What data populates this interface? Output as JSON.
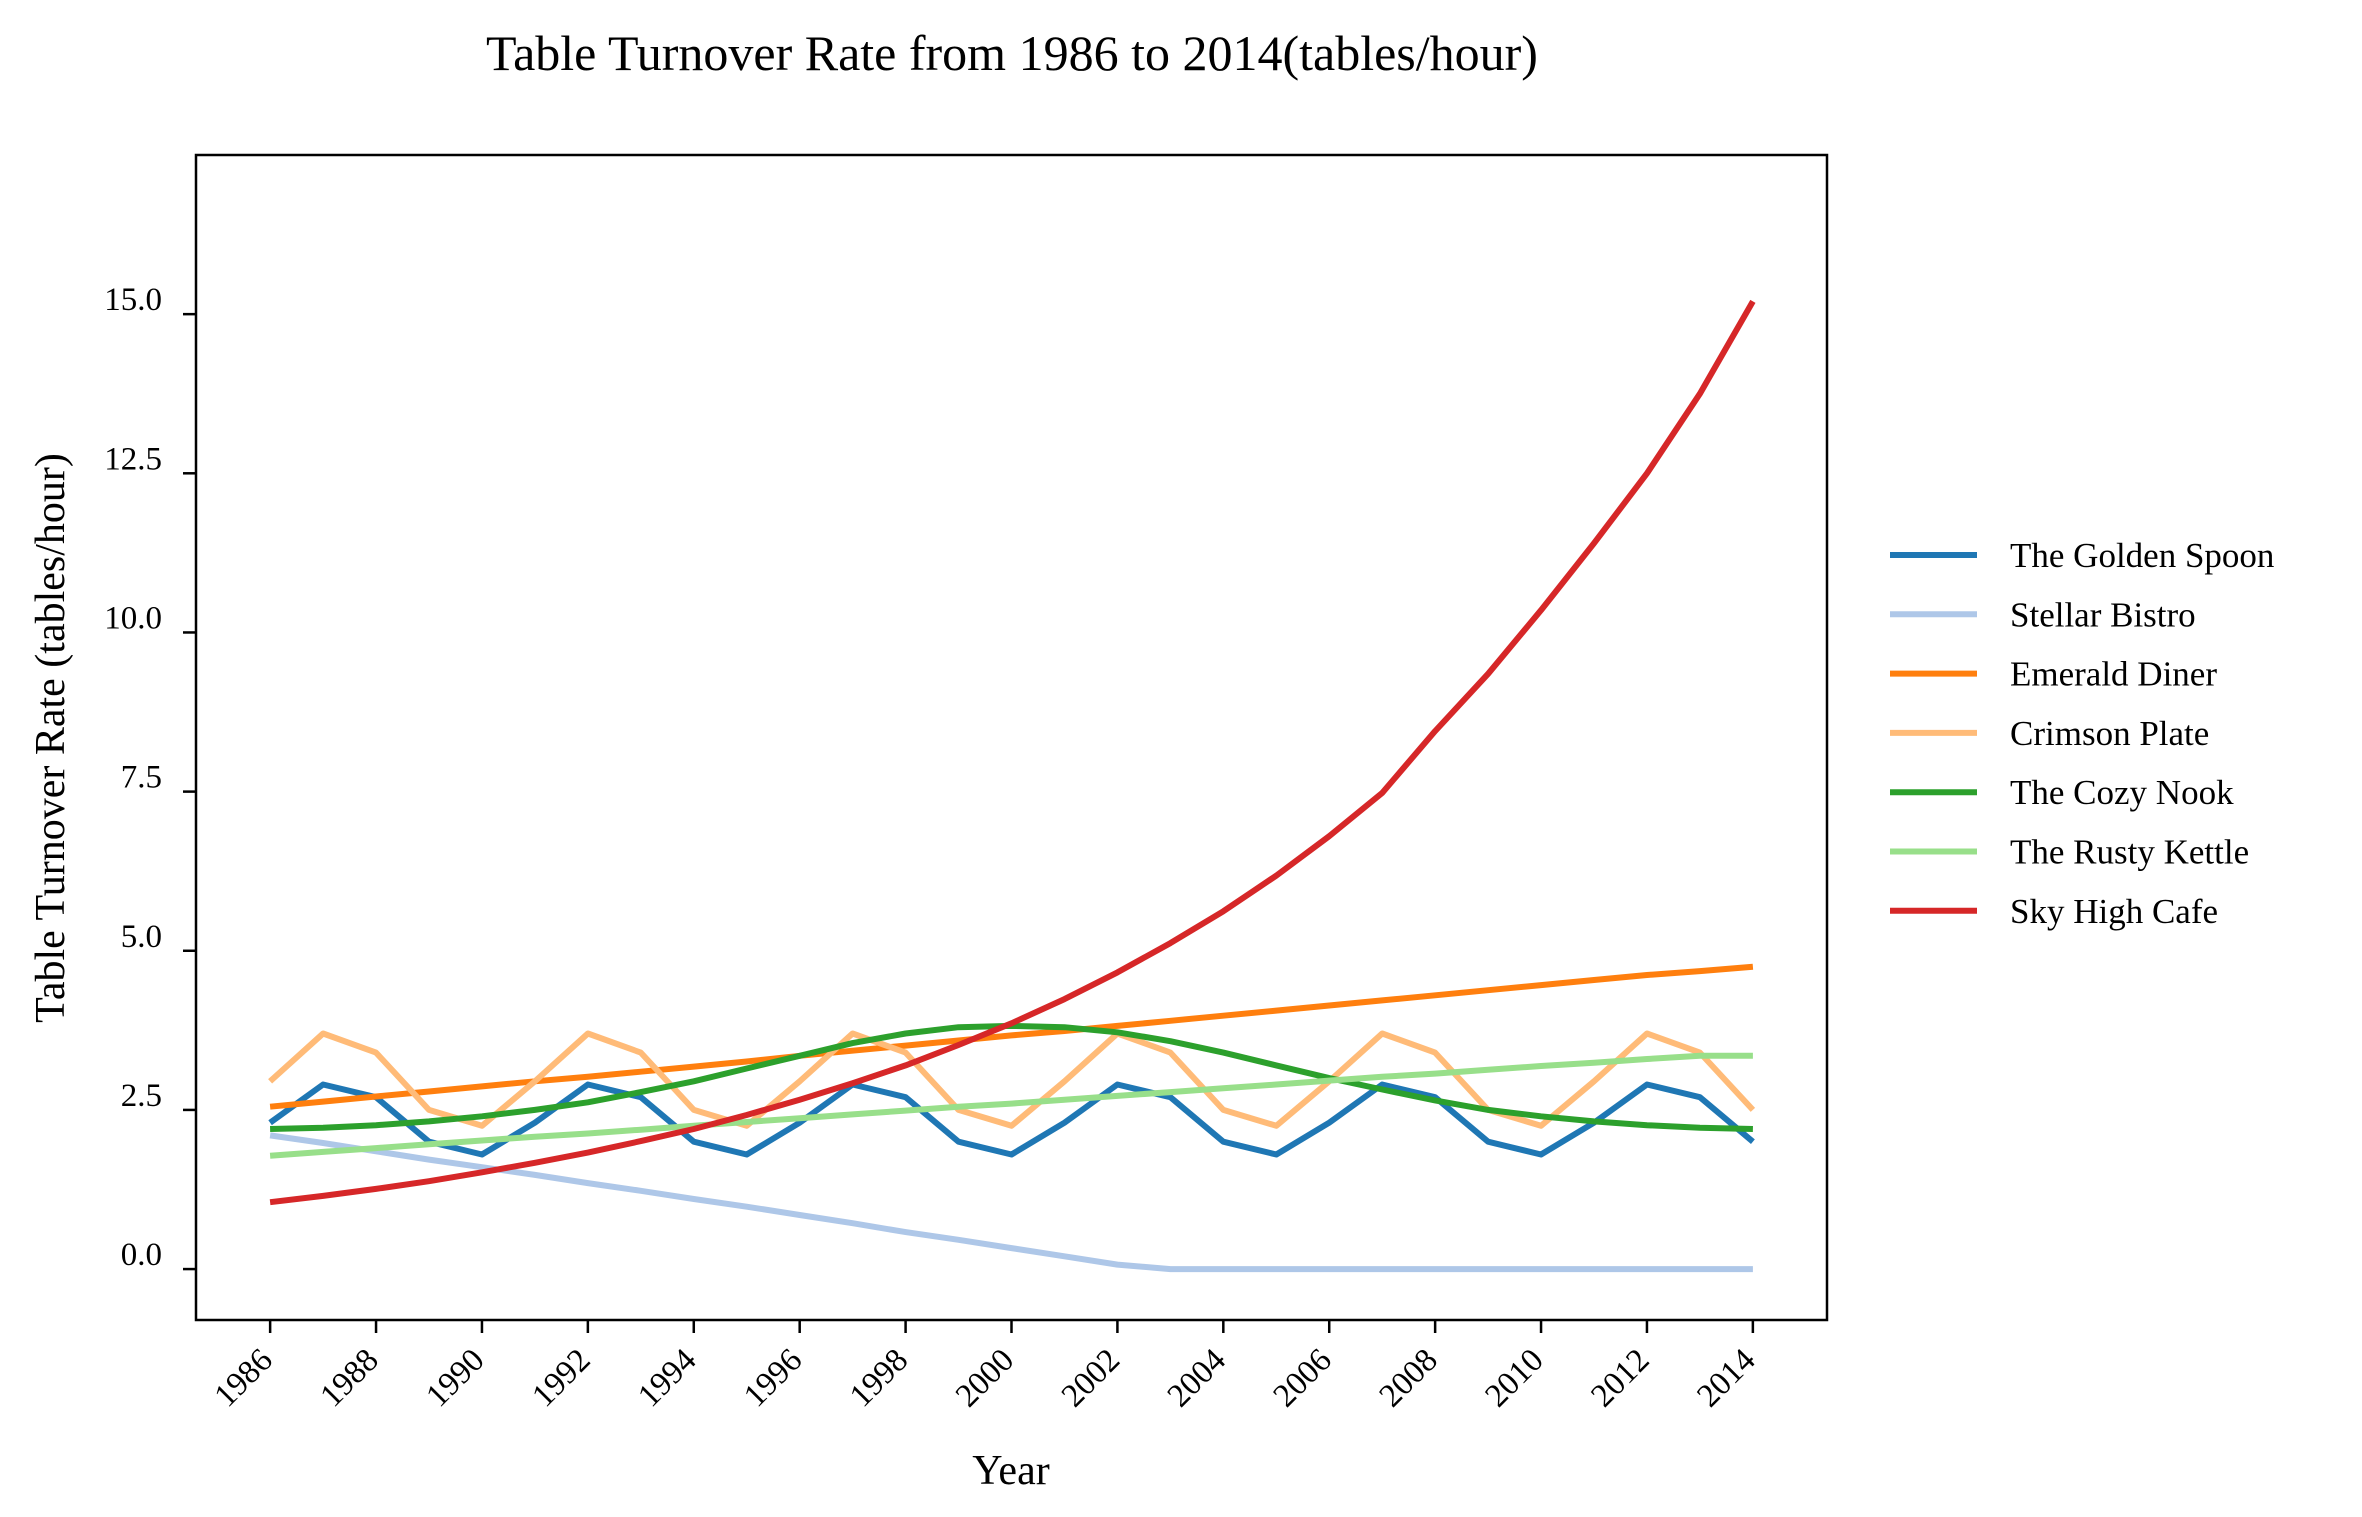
{
  "chart_data": {
    "type": "line",
    "title": "Table Turnover Rate from 1986 to 2014(tables/hour)",
    "xlabel": "Year",
    "ylabel": "Table Turnover Rate (tables/hour)",
    "x": [
      1986,
      1987,
      1988,
      1989,
      1990,
      1991,
      1992,
      1993,
      1994,
      1995,
      1996,
      1997,
      1998,
      1999,
      2000,
      2001,
      2002,
      2003,
      2004,
      2005,
      2006,
      2007,
      2008,
      2009,
      2010,
      2011,
      2012,
      2013,
      2014
    ],
    "xticks": [
      "1986",
      "1988",
      "1990",
      "1992",
      "1994",
      "1996",
      "1998",
      "2000",
      "2002",
      "2004",
      "2006",
      "2008",
      "2010",
      "2012",
      "2014"
    ],
    "yticks": [
      "0.0",
      "2.5",
      "5.0",
      "7.5",
      "10.0",
      "12.5",
      "15.0"
    ],
    "xlim": [
      1984.6,
      2015.4
    ],
    "ylim": [
      -0.8,
      17.5
    ],
    "grid": false,
    "legend_position": "right",
    "series": [
      {
        "name": "The Golden Spoon",
        "color": "#1f77b4",
        "values": [
          2.3,
          2.9,
          2.7,
          2.0,
          1.8,
          2.3,
          2.9,
          2.7,
          2.0,
          1.8,
          2.3,
          2.9,
          2.7,
          2.0,
          1.8,
          2.3,
          2.9,
          2.7,
          2.0,
          1.8,
          2.3,
          2.9,
          2.7,
          2.0,
          1.8,
          2.3,
          2.9,
          2.7,
          2.0
        ]
      },
      {
        "name": "Stellar Bistro",
        "color": "#aec7e8",
        "values": [
          2.1,
          1.98,
          1.85,
          1.72,
          1.6,
          1.48,
          1.35,
          1.23,
          1.1,
          0.98,
          0.85,
          0.72,
          0.58,
          0.46,
          0.33,
          0.2,
          0.07,
          0.0,
          0.0,
          0.0,
          0.0,
          0.0,
          0.0,
          0.0,
          0.0,
          0.0,
          0.0,
          0.0,
          0.0
        ]
      },
      {
        "name": "Emerald Diner",
        "color": "#ff7f0e",
        "values": [
          2.55,
          2.63,
          2.71,
          2.79,
          2.87,
          2.95,
          3.02,
          3.1,
          3.18,
          3.26,
          3.35,
          3.43,
          3.51,
          3.59,
          3.67,
          3.74,
          3.82,
          3.9,
          3.98,
          4.06,
          4.14,
          4.22,
          4.3,
          4.38,
          4.46,
          4.54,
          4.62,
          4.68,
          4.75
        ]
      },
      {
        "name": "Crimson Plate",
        "color": "#ffbb78",
        "values": [
          2.95,
          3.7,
          3.4,
          2.5,
          2.25,
          2.95,
          3.7,
          3.4,
          2.5,
          2.25,
          2.95,
          3.7,
          3.4,
          2.5,
          2.25,
          2.95,
          3.7,
          3.4,
          2.5,
          2.25,
          2.95,
          3.7,
          3.4,
          2.5,
          2.25,
          2.95,
          3.7,
          3.4,
          2.5
        ]
      },
      {
        "name": "The Cozy Nook",
        "color": "#2ca02c",
        "values": [
          2.2,
          2.22,
          2.26,
          2.32,
          2.4,
          2.5,
          2.62,
          2.78,
          2.95,
          3.15,
          3.35,
          3.55,
          3.7,
          3.8,
          3.82,
          3.8,
          3.72,
          3.58,
          3.4,
          3.2,
          3.0,
          2.82,
          2.65,
          2.5,
          2.4,
          2.32,
          2.26,
          2.22,
          2.2
        ]
      },
      {
        "name": "The Rusty Kettle",
        "color": "#98df8a",
        "values": [
          1.78,
          1.84,
          1.9,
          1.96,
          2.02,
          2.08,
          2.13,
          2.19,
          2.25,
          2.31,
          2.37,
          2.43,
          2.49,
          2.55,
          2.6,
          2.66,
          2.72,
          2.78,
          2.84,
          2.9,
          2.96,
          3.02,
          3.07,
          3.13,
          3.19,
          3.24,
          3.3,
          3.35,
          3.35
        ]
      },
      {
        "name": "Sky High Cafe",
        "color": "#d62728",
        "values": [
          1.05,
          1.15,
          1.26,
          1.38,
          1.52,
          1.67,
          1.83,
          2.01,
          2.2,
          2.42,
          2.66,
          2.92,
          3.2,
          3.52,
          3.86,
          4.24,
          4.66,
          5.12,
          5.62,
          6.18,
          6.8,
          7.48,
          8.45,
          9.35,
          10.35,
          11.4,
          12.5,
          13.75,
          15.2
        ]
      }
    ]
  }
}
